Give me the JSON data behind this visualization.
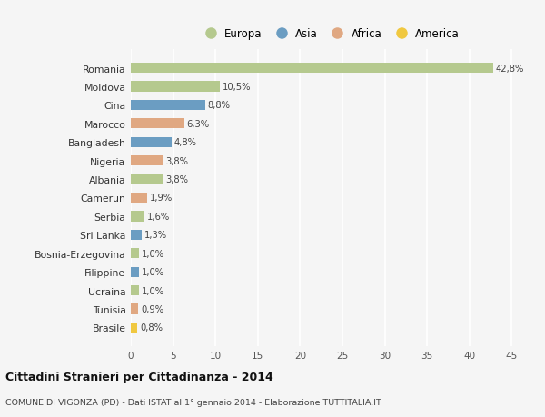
{
  "categories": [
    "Romania",
    "Moldova",
    "Cina",
    "Marocco",
    "Bangladesh",
    "Nigeria",
    "Albania",
    "Camerun",
    "Serbia",
    "Sri Lanka",
    "Bosnia-Erzegovina",
    "Filippine",
    "Ucraina",
    "Tunisia",
    "Brasile"
  ],
  "values": [
    42.8,
    10.5,
    8.8,
    6.3,
    4.8,
    3.8,
    3.8,
    1.9,
    1.6,
    1.3,
    1.0,
    1.0,
    1.0,
    0.9,
    0.8
  ],
  "labels": [
    "42,8%",
    "10,5%",
    "8,8%",
    "6,3%",
    "4,8%",
    "3,8%",
    "3,8%",
    "1,9%",
    "1,6%",
    "1,3%",
    "1,0%",
    "1,0%",
    "1,0%",
    "0,9%",
    "0,8%"
  ],
  "continents": [
    "Europa",
    "Europa",
    "Asia",
    "Africa",
    "Asia",
    "Africa",
    "Europa",
    "Africa",
    "Europa",
    "Asia",
    "Europa",
    "Asia",
    "Europa",
    "Africa",
    "America"
  ],
  "colors": {
    "Europa": "#b5c98e",
    "Asia": "#6b9dc2",
    "Africa": "#e0a882",
    "America": "#f0c840"
  },
  "legend_order": [
    "Europa",
    "Asia",
    "Africa",
    "America"
  ],
  "title": "Cittadini Stranieri per Cittadinanza - 2014",
  "subtitle": "COMUNE DI VIGONZA (PD) - Dati ISTAT al 1° gennaio 2014 - Elaborazione TUTTITALIA.IT",
  "xlim": [
    0,
    47
  ],
  "xticks": [
    0,
    5,
    10,
    15,
    20,
    25,
    30,
    35,
    40,
    45
  ],
  "background_color": "#f5f5f5",
  "grid_color": "#ffffff",
  "bar_height": 0.55
}
